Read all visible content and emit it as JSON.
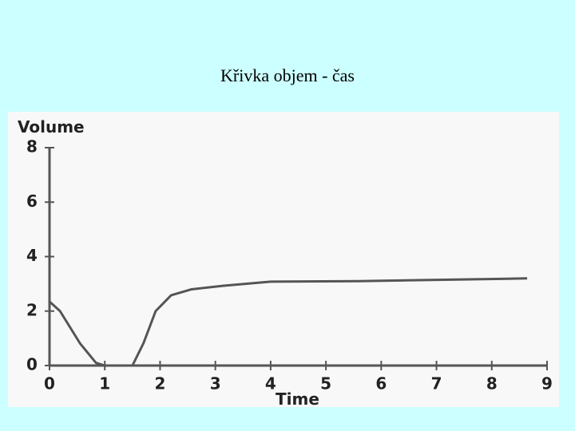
{
  "chart_data": {
    "type": "line",
    "title": "Křivka objem - čas",
    "x_label": "Time",
    "y_label": "Volume",
    "x": [
      0,
      0.19,
      0.55,
      0.84,
      1.0,
      1.5,
      1.7,
      1.92,
      2.2,
      2.57,
      3.15,
      4.0,
      5.6,
      8.64
    ],
    "series": [
      {
        "color": "#555555",
        "values": [
          2.35,
          2.0,
          0.82,
          0.1,
          0,
          0,
          0.82,
          2.0,
          2.58,
          2.8,
          2.93,
          3.08,
          3.1,
          3.2
        ]
      }
    ],
    "xlim": [
      0,
      9
    ],
    "ylim": [
      0,
      8
    ],
    "xticks": [
      0,
      1,
      2,
      3,
      4,
      5,
      6,
      7,
      8,
      9
    ],
    "yticks": [
      0,
      2,
      4,
      6,
      8
    ]
  }
}
